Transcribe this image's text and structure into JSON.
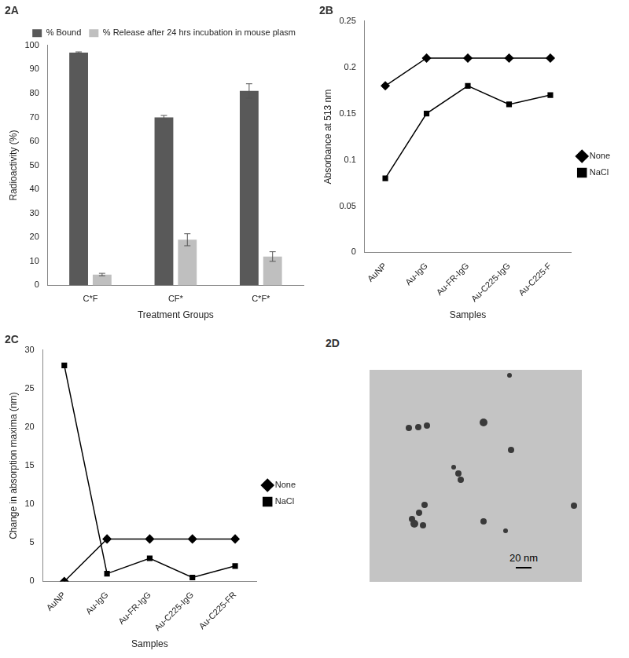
{
  "chart_data": [
    {
      "type": "bar",
      "title": "2A",
      "x_label": "Treatment Groups",
      "y_label": "Radioactivity (%)",
      "categories": [
        "C*F",
        "CF*",
        "C*F*"
      ],
      "series": [
        {
          "name": "% Bound",
          "color": "#595959",
          "values": [
            97,
            70,
            81
          ],
          "errors": [
            0.3,
            0.8,
            3
          ]
        },
        {
          "name": "% Release after 24 hrs incubation in mouse plasm",
          "color": "#bfbfbf",
          "values": [
            4.5,
            19,
            12
          ],
          "errors": [
            0.5,
            2.5,
            2
          ]
        }
      ],
      "ylim": [
        0,
        100
      ],
      "yticks": [
        0,
        10,
        20,
        30,
        40,
        50,
        60,
        70,
        80,
        90,
        100
      ],
      "grid": false,
      "legend": "upper right"
    },
    {
      "type": "line",
      "title": "2B",
      "x_label": "Samples",
      "y_label": "Absorbance at 513 nm",
      "categories": [
        "AuNP",
        "Au-IgG",
        "Au-FR-IgG",
        "Au-C225-IgG",
        "Au-C225-F"
      ],
      "series": [
        {
          "name": "None",
          "color": "#000000",
          "marker": "diamond",
          "values": [
            0.18,
            0.21,
            0.21,
            0.21,
            0.21
          ]
        },
        {
          "name": "NaCl",
          "color": "#000000",
          "marker": "square",
          "values": [
            0.08,
            0.15,
            0.18,
            0.16,
            0.17
          ]
        }
      ],
      "ylim": [
        0,
        0.25
      ],
      "yticks": [
        0,
        0.05,
        0.1,
        0.15,
        0.2,
        0.25
      ],
      "grid": false,
      "legend": "right"
    },
    {
      "type": "line",
      "title": "2C",
      "x_label": "Samples",
      "y_label": "Change in absorption maxima (nm)",
      "categories": [
        "AuNP",
        "Au-IgG",
        "Au-FR-IgG",
        "Au-C225-IgG",
        "Au-C225-FR"
      ],
      "series": [
        {
          "name": "None",
          "color": "#000000",
          "marker": "diamond",
          "values": [
            0,
            5.5,
            5.5,
            5.5,
            5.5
          ]
        },
        {
          "name": "NaCl",
          "color": "#000000",
          "marker": "square",
          "values": [
            28,
            1,
            3,
            0.5,
            2
          ]
        }
      ],
      "ylim": [
        0,
        30
      ],
      "yticks": [
        0,
        5,
        10,
        15,
        20,
        25,
        30
      ],
      "grid": false,
      "legend": "right"
    }
  ],
  "image": {
    "title": "2D",
    "scale_bar_label": "20 nm"
  }
}
